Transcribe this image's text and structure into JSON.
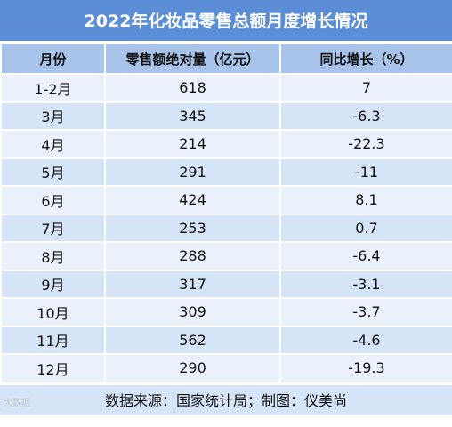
{
  "title": "2022年化妆品零售总额月度增长情况",
  "headers": {
    "month": "月份",
    "sales": "零售额绝对量（亿元）",
    "yoy": "同比增长（%）"
  },
  "rows": [
    {
      "month": "1-2月",
      "sales": "618",
      "yoy": "7"
    },
    {
      "month": "3月",
      "sales": "345",
      "yoy": "-6.3"
    },
    {
      "month": "4月",
      "sales": "214",
      "yoy": "-22.3"
    },
    {
      "month": "5月",
      "sales": "291",
      "yoy": "-11"
    },
    {
      "month": "6月",
      "sales": "424",
      "yoy": "8.1"
    },
    {
      "month": "7月",
      "sales": "253",
      "yoy": "0.7"
    },
    {
      "month": "8月",
      "sales": "288",
      "yoy": "-6.4"
    },
    {
      "month": "9月",
      "sales": "317",
      "yoy": "-3.1"
    },
    {
      "month": "10月",
      "sales": "309",
      "yoy": "-3.7"
    },
    {
      "month": "11月",
      "sales": "562",
      "yoy": "-4.6"
    },
    {
      "month": "12月",
      "sales": "290",
      "yoy": "-19.3"
    }
  ],
  "footer": "数据来源：国家统计局；制图：仪美尚",
  "watermark": "大数据",
  "colors": {
    "title_bg": "#5b8ed6",
    "header_bg": "#a9c4ea",
    "row_light": "#eaf1fb",
    "row_dark": "#d6e4f7"
  }
}
